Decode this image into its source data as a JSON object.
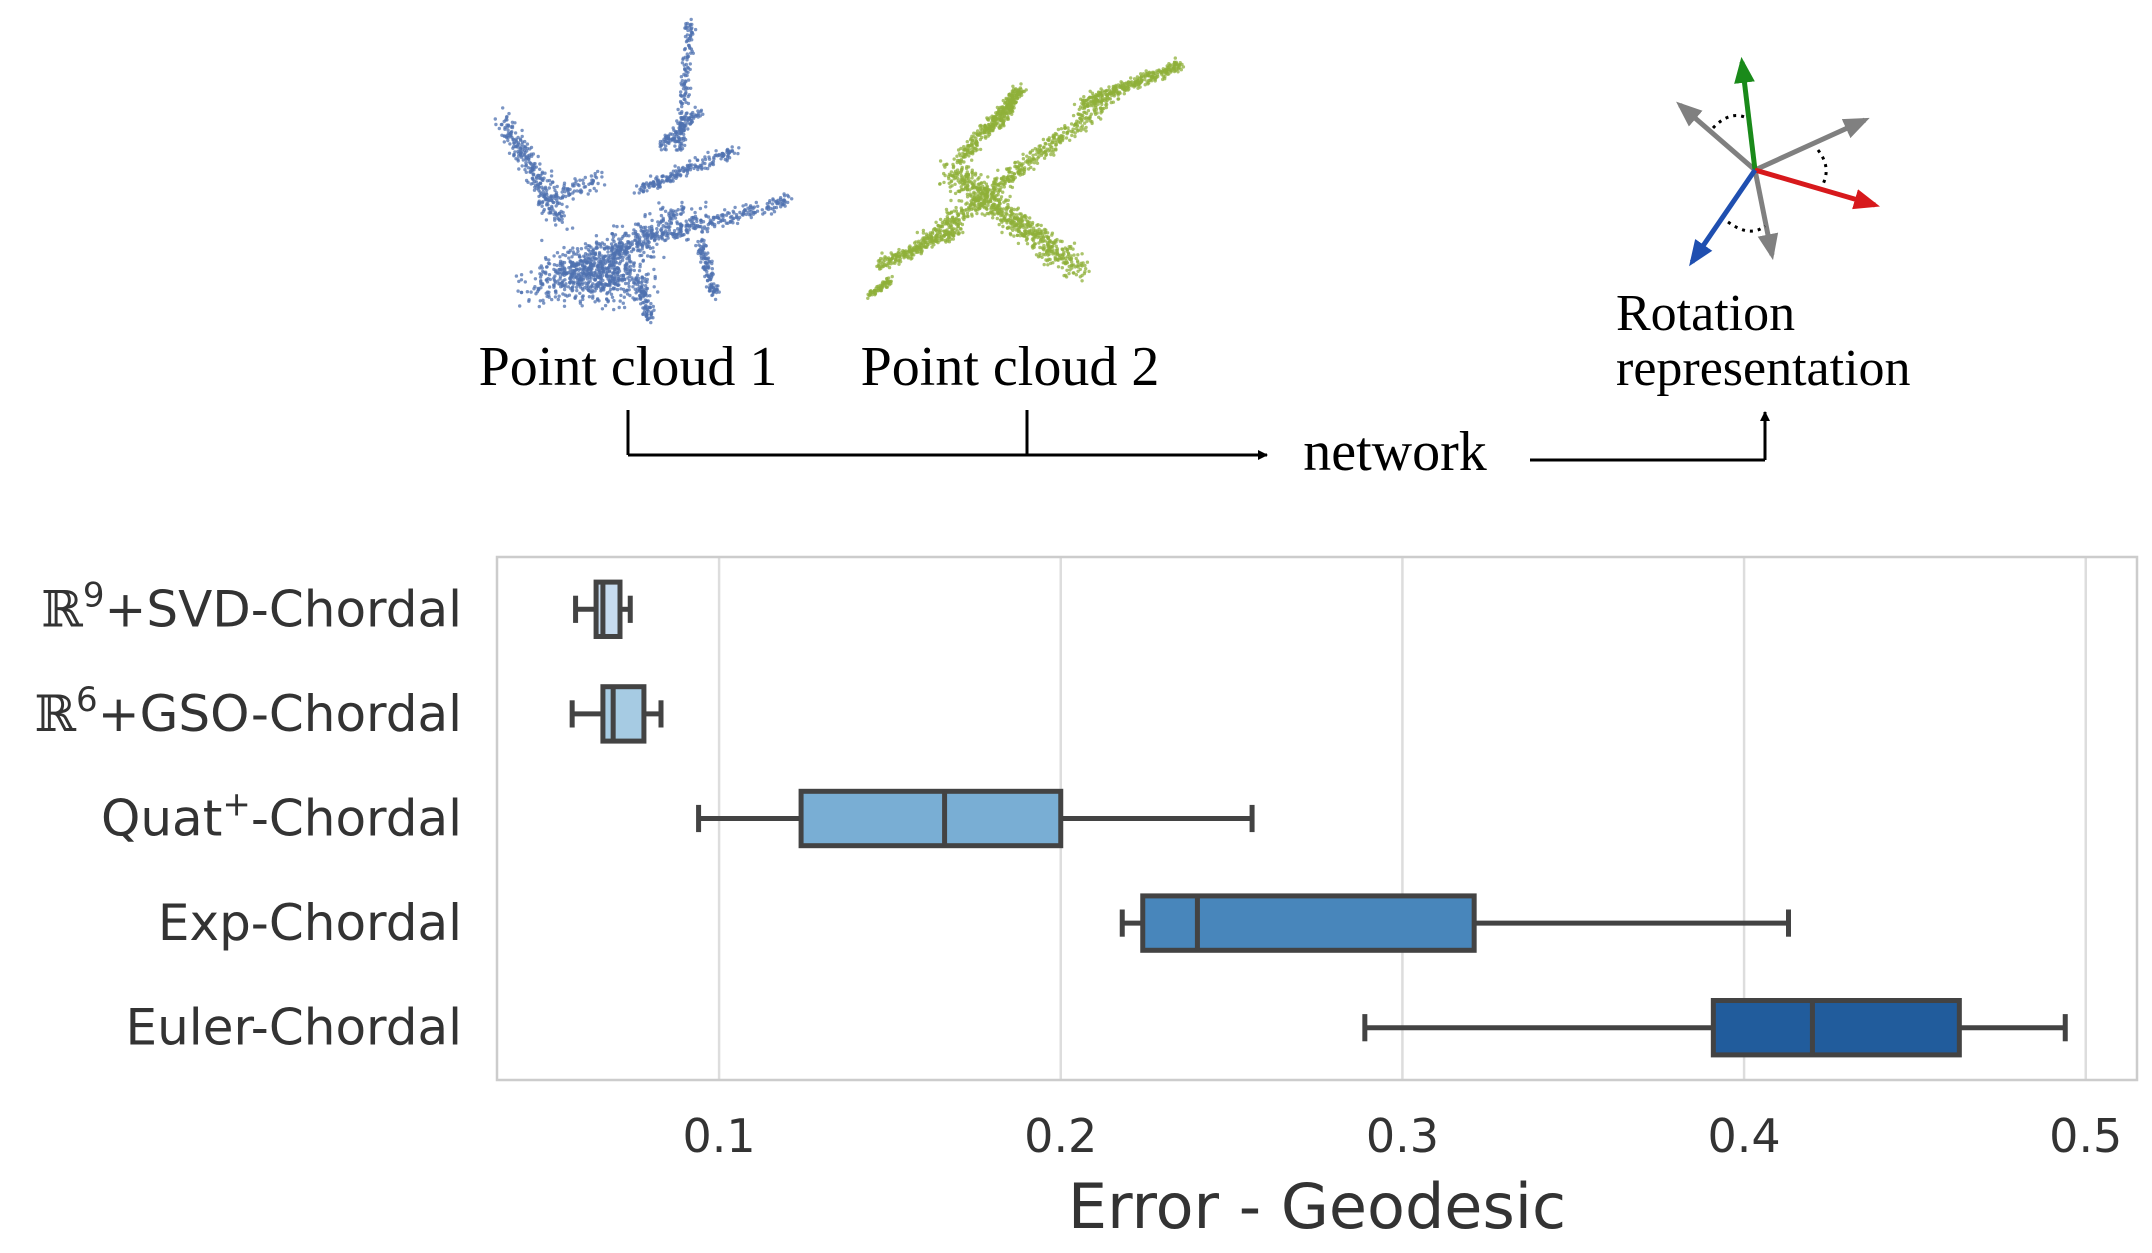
{
  "diagram": {
    "point_cloud_1_label": "Point cloud 1",
    "point_cloud_2_label": "Point cloud 2",
    "network_label": "network",
    "rotation_label_line1": "Rotation",
    "rotation_label_line2": "representation",
    "colors": {
      "cloud_1": "#4f72b0",
      "cloud_2": "#8fb03a",
      "axis_x": "#d7191c",
      "axis_y": "#1a8a1a",
      "axis_z": "#1f4fb0",
      "axis_rotated": "#808080"
    }
  },
  "chart_data": {
    "type": "box",
    "orientation": "horizontal",
    "xlabel": "Error - Geodesic",
    "ylabel": "",
    "xlim": [
      0.035,
      0.515
    ],
    "xticks": [
      0.1,
      0.2,
      0.3,
      0.4,
      0.5
    ],
    "xtick_labels": [
      "0.1",
      "0.2",
      "0.3",
      "0.4",
      "0.5"
    ],
    "grid": "vertical",
    "categories": [
      {
        "base": "ℝ",
        "sup": "9",
        "rest": "+SVD-Chordal"
      },
      {
        "base": "ℝ",
        "sup": "6",
        "rest": "+GSO-Chordal"
      },
      {
        "base": "Quat",
        "sup": "+",
        "rest": "-Chordal"
      },
      {
        "base": "Exp-Chordal",
        "sup": "",
        "rest": ""
      },
      {
        "base": "Euler-Chordal",
        "sup": "",
        "rest": ""
      }
    ],
    "series": [
      {
        "whisker_low": 0.058,
        "q1": 0.064,
        "median": 0.066,
        "q3": 0.071,
        "whisker_high": 0.074,
        "color": "#c6dbef"
      },
      {
        "whisker_low": 0.057,
        "q1": 0.066,
        "median": 0.069,
        "q3": 0.078,
        "whisker_high": 0.083,
        "color": "#a6cbe3"
      },
      {
        "whisker_low": 0.094,
        "q1": 0.124,
        "median": 0.166,
        "q3": 0.2,
        "whisker_high": 0.256,
        "color": "#79aed4"
      },
      {
        "whisker_low": 0.218,
        "q1": 0.224,
        "median": 0.24,
        "q3": 0.321,
        "whisker_high": 0.413,
        "color": "#4886bb"
      },
      {
        "whisker_low": 0.289,
        "q1": 0.391,
        "median": 0.42,
        "q3": 0.463,
        "whisker_high": 0.494,
        "color": "#215c9c"
      }
    ],
    "edge_color": "#434343",
    "grid_color": "#dddddd"
  }
}
